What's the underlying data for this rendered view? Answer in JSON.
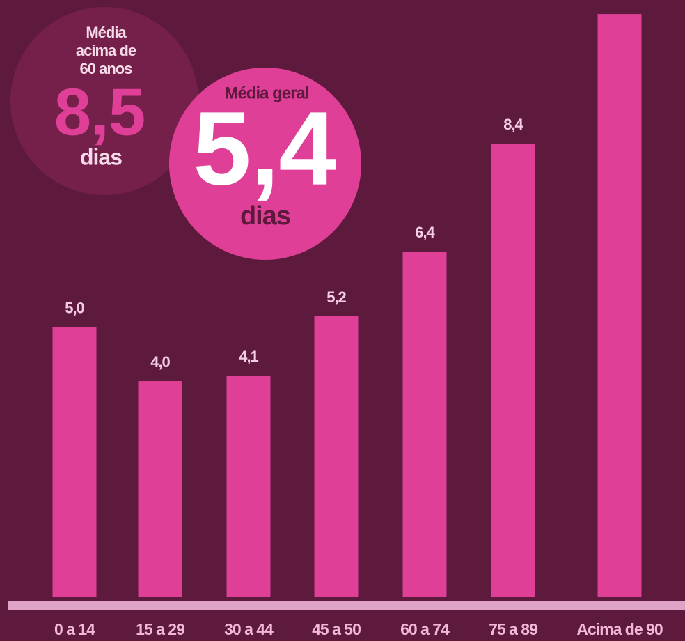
{
  "chart_data": {
    "type": "bar",
    "categories": [
      "0 a 14",
      "15 a 29",
      "30 a 44",
      "45 a 50",
      "60 a 74",
      "75 a 89",
      "Acima de 90"
    ],
    "values": [
      5.0,
      4.0,
      4.1,
      5.2,
      6.4,
      8.4,
      10.8
    ],
    "value_labels": [
      "5,0",
      "4,0",
      "4,1",
      "5,2",
      "6,4",
      "8,4",
      null
    ],
    "color": "#e03f97",
    "ylim": [
      0,
      11
    ],
    "annotations": [
      {
        "lines": [
          "Média",
          "acima de",
          "60 anos"
        ],
        "value": "8,5",
        "unit": "dias"
      },
      {
        "lines": [
          "Média geral"
        ],
        "value": "5,4",
        "unit": "dias"
      }
    ]
  }
}
